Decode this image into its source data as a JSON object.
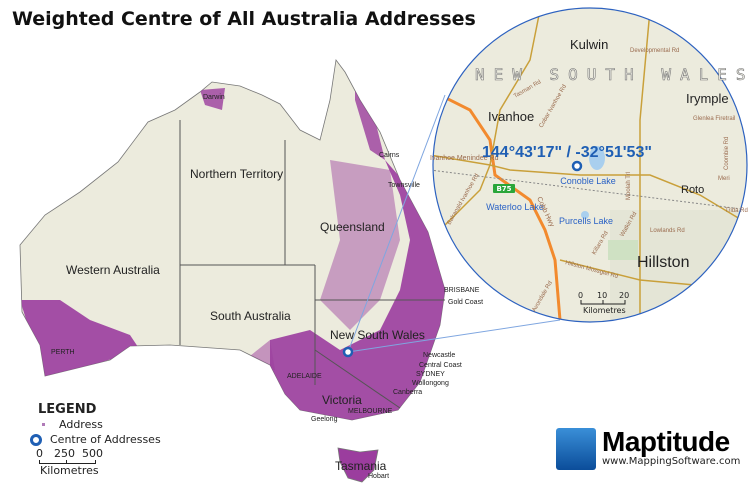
{
  "title": "Weighted Centre of All Australia Addresses",
  "colors": {
    "land": "#ecebdd",
    "address": "#9b3d9e",
    "centre": "#1f5fb4",
    "border": "#555555",
    "road": "#c9a03a",
    "highway": "#f28a2e",
    "water": "#a9cfee"
  },
  "states": [
    "Western Australia",
    "Northern Territory",
    "Queensland",
    "South Australia",
    "New South Wales",
    "Victoria",
    "Tasmania"
  ],
  "cities": [
    "Darwin",
    "Cairns",
    "Townsville",
    "BRISBANE",
    "Gold Coast",
    "Newcastle",
    "Central Coast",
    "SYDNEY",
    "Wollongong",
    "Canberra",
    "ADELAIDE",
    "MELBOURNE",
    "Geelong",
    "PERTH",
    "Hobart"
  ],
  "inset": {
    "coordinates": "144°43'17\" / -32°51'53\"",
    "region": "NEW SOUTH WALES",
    "towns": [
      "Kulwin",
      "Ivanhoe",
      "Irymple",
      "Roto",
      "Hillston"
    ],
    "lakes": [
      "Conoble Lake",
      "Waterloo Lake",
      "Purcells Lake"
    ],
    "roads": [
      "Developmental Rd",
      "Tasman Rd",
      "Cobar Ivanhoe Rd",
      "Glenlea Firetrail",
      "Coombie Rd",
      "Meri",
      "Ivanhoe Menindee Rd",
      "Balranald Ivanhoe Rd",
      "Cobb Hwy",
      "Moolah Trl",
      "Trida Rd",
      "Lowlands Rd",
      "Watkin Rd",
      "Killara Rd",
      "Hillston Mossgiel Rd",
      "Avondale Rd"
    ],
    "highway_shield": "B75",
    "scale": {
      "ticks": [
        "0",
        "10",
        "20"
      ],
      "unit": "Kilometres"
    }
  },
  "legend": {
    "title": "LEGEND",
    "items": [
      {
        "label": "Address",
        "symbol": "dot"
      },
      {
        "label": "Centre of Addresses",
        "symbol": "ring"
      }
    ],
    "scale": {
      "ticks": [
        "0",
        "250",
        "500"
      ],
      "unit": "Kilometres"
    }
  },
  "logo": {
    "name": "Maptitude",
    "url": "www.MappingSoftware.com"
  }
}
